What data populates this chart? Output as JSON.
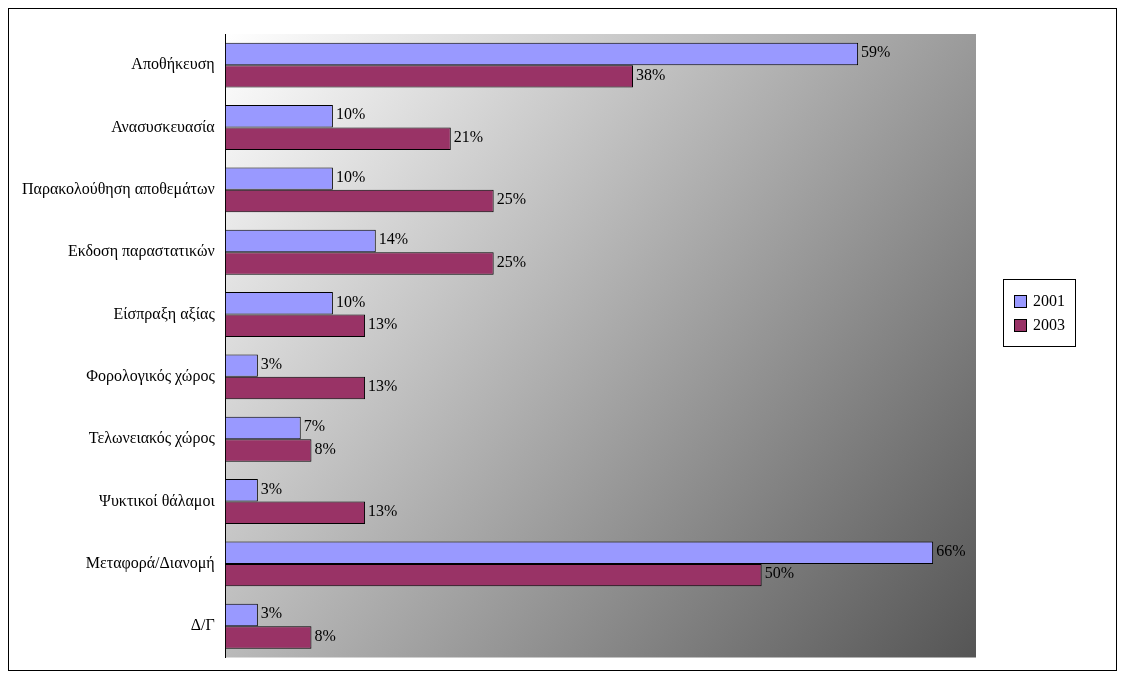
{
  "chart_data": {
    "type": "bar",
    "orientation": "horizontal",
    "categories": [
      "Αποθήκευση",
      "Ανασυσκευασία",
      "Παρακολούθηση αποθεμάτων",
      "Εκδοση παραστατικών",
      "Είσπραξη αξίας",
      "Φορολογικός χώρος",
      "Τελωνειακός χώρος",
      "Ψυκτικοί θάλαμοι",
      "Μεταφορά/Διανομή",
      "Δ/Γ"
    ],
    "series": [
      {
        "name": "2001",
        "color": "#9999ff",
        "values": [
          59,
          10,
          10,
          14,
          10,
          3,
          7,
          3,
          66,
          3
        ],
        "value_labels": [
          "59%",
          "10%",
          "10%",
          "14%",
          "10%",
          "3%",
          "7%",
          "3%",
          "66%",
          "3%"
        ]
      },
      {
        "name": "2003",
        "color": "#993366",
        "values": [
          38,
          21,
          25,
          25,
          13,
          13,
          8,
          13,
          50,
          8
        ],
        "value_labels": [
          "38%",
          "21%",
          "25%",
          "25%",
          "13%",
          "13%",
          "8%",
          "13%",
          "50%",
          "8%"
        ]
      }
    ],
    "legend": "right"
  }
}
